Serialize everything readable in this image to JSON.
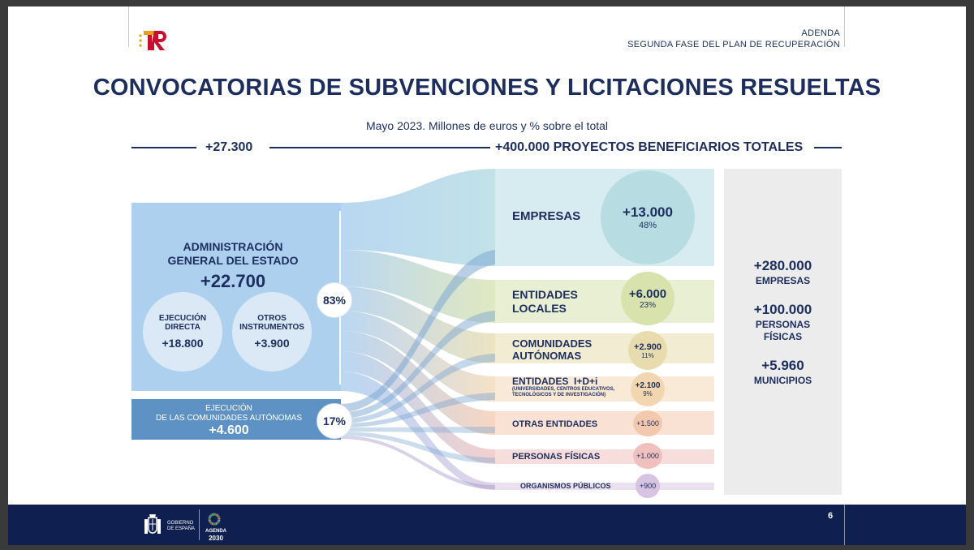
{
  "header": {
    "adenda_line1": "ADENDA",
    "adenda_line2": "SEGUNDA FASE DEL PLAN DE RECUPERACIÓN"
  },
  "title": "CONVOCATORIAS DE SUBVENCIONES Y LICITACIONES RESUELTAS",
  "subtitle": "Mayo 2023. Millones de euros y % sobre el total",
  "top_left_total": "+27.300",
  "top_right_total": "+400.000 PROYECTOS BENEFICIARIOS TOTALES",
  "sources": {
    "age": {
      "line1": "ADMINISTRACIÓN",
      "line2": "GENERAL DEL ESTADO",
      "value": "+22.700",
      "pct": "83%",
      "sub": [
        {
          "line1": "EJECUCIÓN",
          "line2": "DIRECTA",
          "value": "+18.800"
        },
        {
          "line1": "OTROS",
          "line2": "INSTRUMENTOS",
          "value": "+3.900"
        }
      ]
    },
    "ccaa": {
      "line1": "EJECUCIÓN",
      "line2": "DE LAS COMUNIDADES AUTÓNOMAS",
      "value": "+4.600",
      "pct": "17%"
    }
  },
  "categories": [
    {
      "line1": "EMPRESAS",
      "line2": "",
      "value": "+13.000",
      "pct": "48%",
      "color": "#b7dde3"
    },
    {
      "line1": "ENTIDADES",
      "line2": "LOCALES",
      "value": "+6.000",
      "pct": "23%",
      "color": "#dbe5b6"
    },
    {
      "line1": "COMUNIDADES",
      "line2": "AUTÓNOMAS",
      "value": "+2.900",
      "pct": "11%",
      "color": "#eadfb6"
    },
    {
      "line1": "ENTIDADES  I+D+i",
      "line2": "(UNIVERSIDADES, CENTROS EDUCATIVOS,",
      "line3": "TECNOLÓGICOS Y DE INVESTIGACIÓN)",
      "value": "+2.100",
      "pct": "9%",
      "color": "#f4dcbd"
    },
    {
      "line1": "OTRAS ENTIDADES",
      "line2": "",
      "value": "+1.500",
      "pct": "",
      "color": "#f5cfb7"
    },
    {
      "line1": "PERSONAS FÍSICAS",
      "line2": "",
      "value": "+1.000",
      "pct": "",
      "color": "#f2c8c6"
    },
    {
      "line1": "ORGANISMOS PÚBLICOS",
      "line2": "",
      "value": "+900",
      "pct": "",
      "color": "#dccbe4"
    }
  ],
  "totals": [
    {
      "value": "+280.000",
      "line1": "EMPRESAS",
      "line2": ""
    },
    {
      "value": "+100.000",
      "line1": "PERSONAS",
      "line2": "FÍSICAS"
    },
    {
      "value": "+5.960",
      "line1": "MUNICIPIOS",
      "line2": ""
    }
  ],
  "footer": {
    "page": "6",
    "gob_line1": "GOBIERNO",
    "gob_line2": "DE ESPAÑA",
    "agenda_line1": "AGENDA",
    "agenda_line2": "2030"
  },
  "colors": {
    "navy": "#1d2e5e",
    "age_box": "#aed0ef",
    "ccaa_box": "#5f92c4",
    "footer": "#0f1f4f"
  }
}
